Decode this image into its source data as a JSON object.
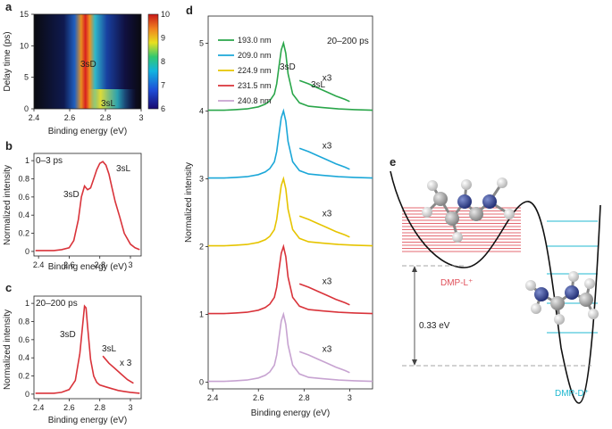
{
  "colors": {
    "green": "#2aa64a",
    "cyan": "#1ba7d8",
    "yellow": "#e6c400",
    "red": "#d9333a",
    "lilac": "#c7a3d1",
    "well_red": "#e0505a",
    "well_cyan": "#20b8d0",
    "atom_gray": "#9a9a9a",
    "atom_blue": "#2f3f8f"
  },
  "chart_data": [
    {
      "panel": "a",
      "type": "heatmap",
      "xlabel": "Binding energy (eV)",
      "ylabel": "Delay time (ps)",
      "xlim": [
        2.4,
        3.0
      ],
      "ylim": [
        0,
        15
      ],
      "xticks": [
        "2.4",
        "2.6",
        "2.8",
        "3"
      ],
      "yticks": [
        "0",
        "5",
        "10",
        "15"
      ],
      "colorbar": {
        "min": 6,
        "max": 10,
        "ticks": [
          "10",
          "9",
          "8",
          "7",
          "6"
        ]
      },
      "annotations": [
        {
          "text": "3sD",
          "x": 2.71,
          "y": 6
        },
        {
          "text": "3sL",
          "x": 2.82,
          "y": 0.8
        }
      ]
    },
    {
      "panel": "b",
      "type": "line",
      "title": "0–3 ps",
      "xlabel": "Binding energy (eV)",
      "ylabel": "Normalized intensity",
      "xlim": [
        2.37,
        3.07
      ],
      "ylim": [
        -0.05,
        1.08
      ],
      "xticks": [
        "2.4",
        "2.6",
        "2.8",
        "3"
      ],
      "yticks": [
        "0",
        "0.2",
        "0.4",
        "0.6",
        "0.8",
        "1"
      ],
      "x": [
        2.38,
        2.45,
        2.5,
        2.55,
        2.6,
        2.63,
        2.66,
        2.68,
        2.7,
        2.72,
        2.74,
        2.76,
        2.78,
        2.8,
        2.82,
        2.84,
        2.86,
        2.88,
        2.9,
        2.93,
        2.96,
        3.0,
        3.03,
        3.06
      ],
      "values": [
        0.01,
        0.01,
        0.01,
        0.02,
        0.04,
        0.12,
        0.35,
        0.6,
        0.72,
        0.68,
        0.7,
        0.8,
        0.9,
        0.97,
        0.99,
        0.95,
        0.85,
        0.7,
        0.55,
        0.38,
        0.2,
        0.08,
        0.04,
        0.02
      ],
      "annotations": [
        {
          "text": "3sD",
          "x": 2.65,
          "y": 0.66
        },
        {
          "text": "3sL",
          "x": 2.86,
          "y": 1.0
        }
      ]
    },
    {
      "panel": "c",
      "type": "line",
      "title": "20–200 ps",
      "xlabel": "Binding energy (eV)",
      "ylabel": "Normalized intensity",
      "xlim": [
        2.37,
        3.07
      ],
      "ylim": [
        -0.05,
        1.08
      ],
      "xticks": [
        "2.4",
        "2.6",
        "2.8",
        "3"
      ],
      "yticks": [
        "0",
        "0.2",
        "0.4",
        "0.6",
        "0.8",
        "1"
      ],
      "x": [
        2.38,
        2.45,
        2.5,
        2.55,
        2.6,
        2.64,
        2.67,
        2.69,
        2.7,
        2.71,
        2.72,
        2.74,
        2.76,
        2.78,
        2.8,
        2.84,
        2.88,
        2.92,
        2.96,
        3.0,
        3.06
      ],
      "values": [
        0.01,
        0.01,
        0.01,
        0.02,
        0.05,
        0.15,
        0.45,
        0.8,
        0.97,
        0.95,
        0.75,
        0.38,
        0.2,
        0.13,
        0.1,
        0.08,
        0.06,
        0.04,
        0.03,
        0.02,
        0.01
      ],
      "scaled_x": [
        2.82,
        2.86,
        2.9,
        2.94,
        2.98,
        3.02
      ],
      "scaled_values": [
        0.42,
        0.34,
        0.28,
        0.22,
        0.16,
        0.12
      ],
      "annotations": [
        {
          "text": "3sD",
          "x": 2.6,
          "y": 0.82
        },
        {
          "text": "3sL",
          "x": 2.84,
          "y": 0.5
        },
        {
          "text": "x 3",
          "x": 2.95,
          "y": 0.4
        }
      ]
    },
    {
      "panel": "d",
      "type": "line",
      "title": "20–200 ps",
      "xlabel": "Binding energy (eV)",
      "ylabel": "Normalized intensity",
      "xlim": [
        2.38,
        3.1
      ],
      "ylim": [
        -0.1,
        5.4
      ],
      "xticks": [
        "2.4",
        "2.6",
        "2.8",
        "3"
      ],
      "yticks": [
        "0",
        "1",
        "2",
        "3",
        "4",
        "5"
      ],
      "x": [
        2.38,
        2.45,
        2.5,
        2.55,
        2.6,
        2.63,
        2.65,
        2.67,
        2.68,
        2.69,
        2.7,
        2.71,
        2.72,
        2.73,
        2.75,
        2.78,
        2.82,
        2.88,
        2.95,
        3.02,
        3.1
      ],
      "shape": [
        0.01,
        0.01,
        0.02,
        0.03,
        0.06,
        0.1,
        0.15,
        0.25,
        0.4,
        0.65,
        0.9,
        1.0,
        0.85,
        0.55,
        0.25,
        0.12,
        0.07,
        0.05,
        0.03,
        0.02,
        0.01
      ],
      "scaled_x": [
        2.78,
        2.82,
        2.86,
        2.9,
        2.94,
        2.98,
        3.0
      ],
      "scaled_shape": [
        0.45,
        0.4,
        0.34,
        0.28,
        0.22,
        0.17,
        0.14
      ],
      "series": [
        {
          "name": "193.0 nm",
          "color": "#2aa64a",
          "offset": 4,
          "scale_label": "x3"
        },
        {
          "name": "209.0 nm",
          "color": "#1ba7d8",
          "offset": 3,
          "scale_label": "x3"
        },
        {
          "name": "224.9 nm",
          "color": "#e6c400",
          "offset": 2,
          "scale_label": "x3"
        },
        {
          "name": "231.5 nm",
          "color": "#d9333a",
          "offset": 1,
          "scale_label": "x3"
        },
        {
          "name": "240.8 nm",
          "color": "#c7a3d1",
          "offset": 0,
          "scale_label": "x3"
        }
      ],
      "annotations": [
        {
          "text": "3sD",
          "x": 2.71,
          "y": 5.02
        },
        {
          "text": "3sL",
          "x": 2.83,
          "y": 4.84
        }
      ]
    },
    {
      "panel": "e",
      "type": "diagram",
      "energy_gap": "0.33 eV",
      "well_left_label": "DMP-L⁺",
      "well_right_label": "DMP-D⁺"
    }
  ],
  "panels": {
    "a": "a",
    "b": "b",
    "c": "c",
    "d": "d",
    "e": "e"
  }
}
